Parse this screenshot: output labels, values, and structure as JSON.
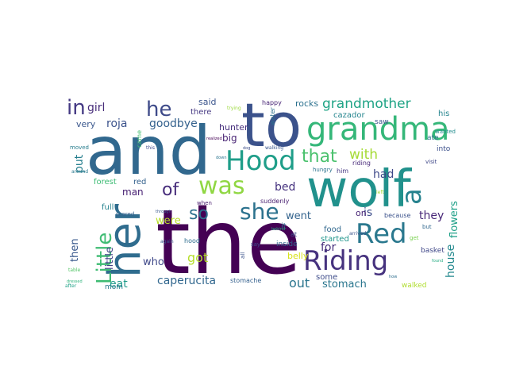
{
  "words": [
    {
      "text": "the",
      "color": "#440154"
    },
    {
      "text": "and",
      "color": "#31688e"
    },
    {
      "text": "wolf",
      "color": "#21918c"
    },
    {
      "text": "to",
      "color": "#3b528b"
    },
    {
      "text": "her",
      "color": "#2f6c8e"
    },
    {
      "text": "grandma",
      "color": "#35b779"
    },
    {
      "text": "Hood",
      "color": "#1f9e89"
    },
    {
      "text": "Riding",
      "color": "#46327e"
    },
    {
      "text": "Red",
      "color": "#2a788e"
    },
    {
      "text": "Little",
      "color": "#3fbc73"
    },
    {
      "text": "was",
      "color": "#90d743"
    },
    {
      "text": "a",
      "color": "#26828e"
    },
    {
      "text": "she",
      "color": "#2c728e"
    },
    {
      "text": "in",
      "color": "#443983"
    },
    {
      "text": "he",
      "color": "#3e4a89"
    },
    {
      "text": "that",
      "color": "#4ac16d"
    },
    {
      "text": "of",
      "color": "#472d7b"
    },
    {
      "text": "so",
      "color": "#2d708e"
    },
    {
      "text": "grandmother",
      "color": "#20a486"
    },
    {
      "text": "with",
      "color": "#a5db36"
    },
    {
      "text": "girl",
      "color": "#472c7a"
    },
    {
      "text": "roja",
      "color": "#3b528b"
    },
    {
      "text": "goodbye",
      "color": "#34618d"
    },
    {
      "text": "put",
      "color": "#277f8e"
    },
    {
      "text": "had",
      "color": "#3e4989"
    },
    {
      "text": "bed",
      "color": "#46337f"
    },
    {
      "text": "for",
      "color": "#472f7d"
    },
    {
      "text": "went",
      "color": "#33638d"
    },
    {
      "text": "is",
      "color": "#3d4d8a"
    },
    {
      "text": "on",
      "color": "#482576"
    },
    {
      "text": "they",
      "color": "#482878"
    },
    {
      "text": "flowers",
      "color": "#1fa088"
    },
    {
      "text": "house",
      "color": "#23898e"
    },
    {
      "text": "then",
      "color": "#38588c"
    },
    {
      "text": "little",
      "color": "#414487"
    },
    {
      "text": "who",
      "color": "#3f4889"
    },
    {
      "text": "got",
      "color": "#b5de2b"
    },
    {
      "text": "eat",
      "color": "#1e9b8a"
    },
    {
      "text": "caperucita",
      "color": "#31678e"
    },
    {
      "text": "out",
      "color": "#2b758e"
    },
    {
      "text": "stomach",
      "color": "#2a768e"
    },
    {
      "text": "were",
      "color": "#b8de29"
    },
    {
      "text": "man",
      "color": "#482173"
    },
    {
      "text": "forest",
      "color": "#3dbc74"
    },
    {
      "text": "said",
      "color": "#3a548c"
    },
    {
      "text": "there",
      "color": "#453882"
    },
    {
      "text": "very",
      "color": "#39568c"
    },
    {
      "text": "big",
      "color": "#482374"
    },
    {
      "text": "hunter",
      "color": "#472f7d"
    },
    {
      "text": "rocks",
      "color": "#2c718e"
    },
    {
      "text": "cazador",
      "color": "#25858e"
    },
    {
      "text": "his",
      "color": "#25848e"
    },
    {
      "text": "food",
      "color": "#31688e"
    },
    {
      "text": "belly",
      "color": "#d8e219"
    },
    {
      "text": "started",
      "color": "#1f958b"
    },
    {
      "text": "some",
      "color": "#3e4c8a"
    },
    {
      "text": "mom",
      "color": "#29798e"
    },
    {
      "text": "came",
      "color": "#43bf71"
    },
    {
      "text": "full",
      "color": "#26828e"
    },
    {
      "text": "red",
      "color": "#34618d"
    },
    {
      "text": "basket",
      "color": "#3f4788"
    },
    {
      "text": "ate",
      "color": "#2d708e"
    },
    {
      "text": "into",
      "color": "#3c508b"
    },
    {
      "text": "saw",
      "color": "#3b528b"
    },
    {
      "text": "inside",
      "color": "#32658e"
    },
    {
      "text": "suddenly",
      "color": "#481f70"
    },
    {
      "text": "stomache",
      "color": "#34608d"
    },
    {
      "text": "hood",
      "color": "#2e6d8e"
    },
    {
      "text": "again",
      "color": "#38588c"
    },
    {
      "text": "walked",
      "color": "#b0dd2f"
    },
    {
      "text": "riding",
      "color": "#482979"
    },
    {
      "text": "him",
      "color": "#453781"
    },
    {
      "text": "hungry",
      "color": "#2c738e"
    },
    {
      "text": "visit",
      "color": "#3f4788"
    },
    {
      "text": "wanted",
      "color": "#228c8d"
    },
    {
      "text": "happy",
      "color": "#482576"
    },
    {
      "text": "trying",
      "color": "#9bd93c"
    },
    {
      "text": "water",
      "color": "#2d708e"
    },
    {
      "text": "scared",
      "color": "#34608d"
    },
    {
      "text": "say",
      "color": "#3e4c8a"
    },
    {
      "text": "at",
      "color": "#3d4d8a"
    },
    {
      "text": "it",
      "color": "#2f6c8e"
    },
    {
      "text": "because",
      "color": "#3b528b"
    },
    {
      "text": "but",
      "color": "#31688e"
    },
    {
      "text": "arrived",
      "color": "#3a548c"
    },
    {
      "text": "get",
      "color": "#7ad151"
    },
    {
      "text": "when",
      "color": "#481c6e"
    },
    {
      "text": "through",
      "color": "#38588c"
    },
    {
      "text": "walking",
      "color": "#39568c"
    },
    {
      "text": "dog",
      "color": "#3d4e8a"
    },
    {
      "text": "down",
      "color": "#2b748e"
    },
    {
      "text": "moved",
      "color": "#287d8e"
    },
    {
      "text": "around",
      "color": "#2a788e"
    },
    {
      "text": "dressed",
      "color": "#2fb47c"
    },
    {
      "text": "after",
      "color": "#1fa187"
    },
    {
      "text": "table",
      "color": "#54c568"
    },
    {
      "text": "left",
      "color": "#9fda3a"
    },
    {
      "text": "how",
      "color": "#2e6e8e"
    },
    {
      "text": "found",
      "color": "#25ac82"
    },
    {
      "text": "all",
      "color": "#3b528b"
    },
    {
      "text": "this",
      "color": "#3e4989"
    },
    {
      "text": "behind",
      "color": "#27ad81"
    },
    {
      "text": "realized",
      "color": "#440154"
    }
  ]
}
